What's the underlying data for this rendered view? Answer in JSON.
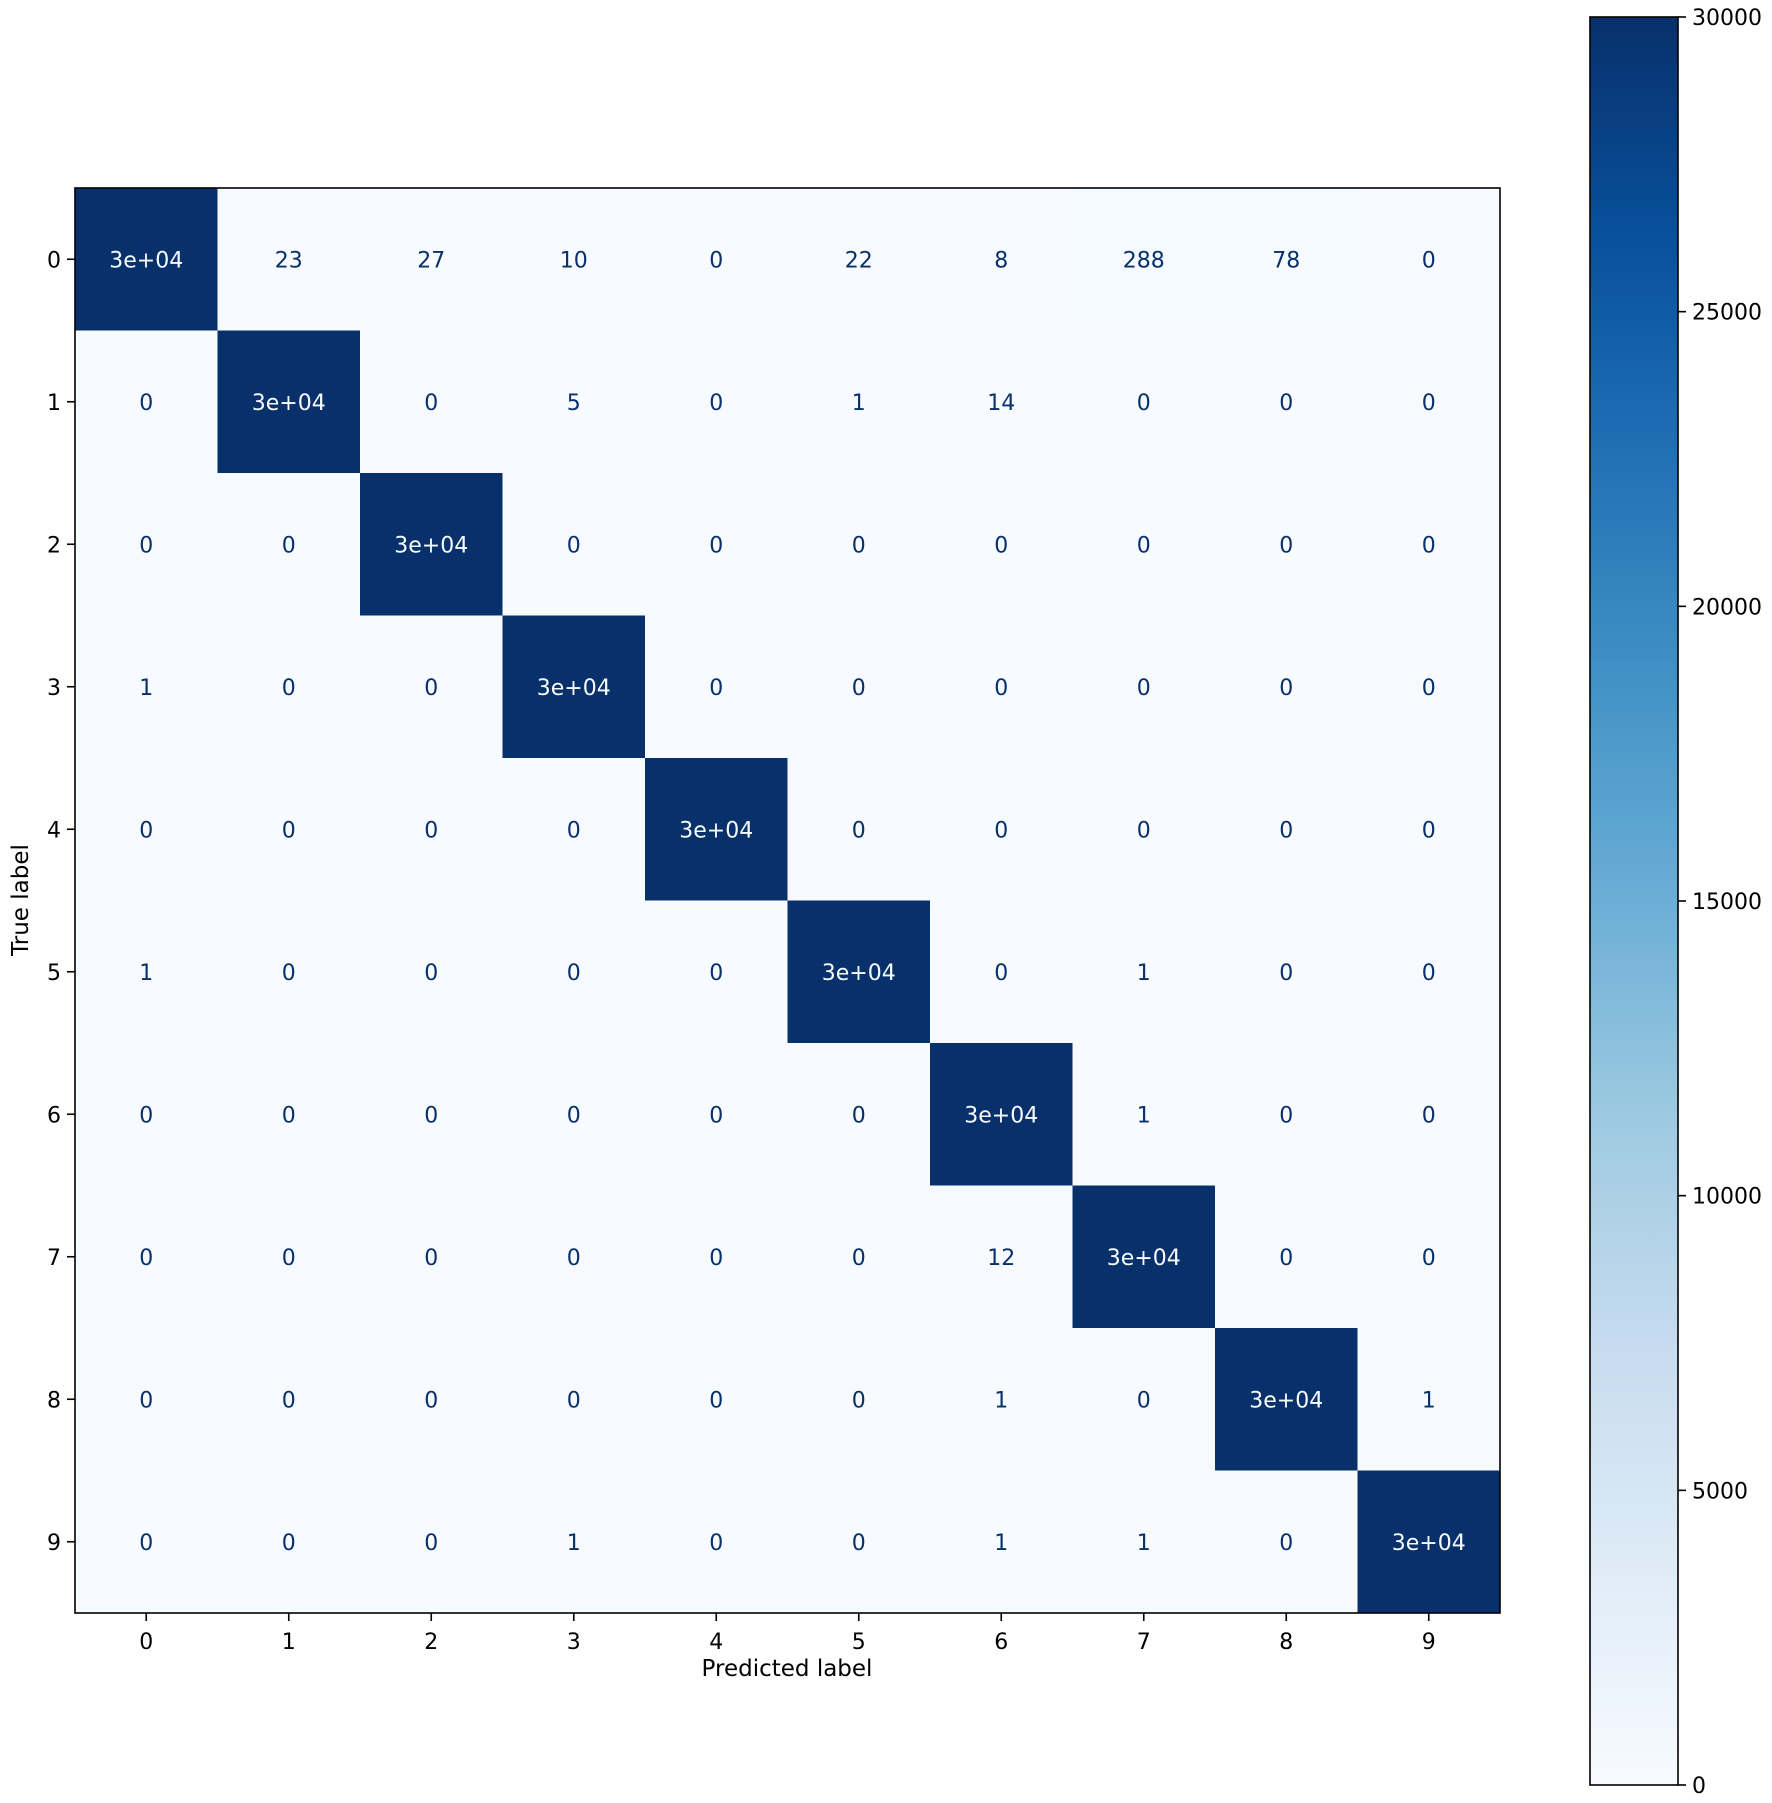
{
  "chart_data": {
    "type": "heatmap",
    "title": "",
    "xlabel": "Predicted label",
    "ylabel": "True label",
    "x_tick_labels": [
      "0",
      "1",
      "2",
      "3",
      "4",
      "5",
      "6",
      "7",
      "8",
      "9"
    ],
    "y_tick_labels": [
      "0",
      "1",
      "2",
      "3",
      "4",
      "5",
      "6",
      "7",
      "8",
      "9"
    ],
    "values": [
      [
        30000,
        23,
        27,
        10,
        0,
        22,
        8,
        288,
        78,
        0
      ],
      [
        0,
        30000,
        0,
        5,
        0,
        1,
        14,
        0,
        0,
        0
      ],
      [
        0,
        0,
        30000,
        0,
        0,
        0,
        0,
        0,
        0,
        0
      ],
      [
        1,
        0,
        0,
        30000,
        0,
        0,
        0,
        0,
        0,
        0
      ],
      [
        0,
        0,
        0,
        0,
        30000,
        0,
        0,
        0,
        0,
        0
      ],
      [
        1,
        0,
        0,
        0,
        0,
        30000,
        0,
        1,
        0,
        0
      ],
      [
        0,
        0,
        0,
        0,
        0,
        0,
        30000,
        1,
        0,
        0
      ],
      [
        0,
        0,
        0,
        0,
        0,
        0,
        12,
        30000,
        0,
        0
      ],
      [
        0,
        0,
        0,
        0,
        0,
        0,
        1,
        0,
        30000,
        1
      ],
      [
        0,
        0,
        0,
        1,
        0,
        0,
        1,
        1,
        0,
        30000
      ]
    ],
    "cell_labels": [
      [
        "3e+04",
        "23",
        "27",
        "10",
        "0",
        "22",
        "8",
        "288",
        "78",
        "0"
      ],
      [
        "0",
        "3e+04",
        "0",
        "5",
        "0",
        "1",
        "14",
        "0",
        "0",
        "0"
      ],
      [
        "0",
        "0",
        "3e+04",
        "0",
        "0",
        "0",
        "0",
        "0",
        "0",
        "0"
      ],
      [
        "1",
        "0",
        "0",
        "3e+04",
        "0",
        "0",
        "0",
        "0",
        "0",
        "0"
      ],
      [
        "0",
        "0",
        "0",
        "0",
        "3e+04",
        "0",
        "0",
        "0",
        "0",
        "0"
      ],
      [
        "1",
        "0",
        "0",
        "0",
        "0",
        "3e+04",
        "0",
        "1",
        "0",
        "0"
      ],
      [
        "0",
        "0",
        "0",
        "0",
        "0",
        "0",
        "3e+04",
        "1",
        "0",
        "0"
      ],
      [
        "0",
        "0",
        "0",
        "0",
        "0",
        "0",
        "12",
        "3e+04",
        "0",
        "0"
      ],
      [
        "0",
        "0",
        "0",
        "0",
        "0",
        "0",
        "1",
        "0",
        "3e+04",
        "1"
      ],
      [
        "0",
        "0",
        "0",
        "1",
        "0",
        "0",
        "1",
        "1",
        "0",
        "3e+04"
      ]
    ],
    "colorbar": {
      "colormap": "Blues",
      "range": [
        0,
        30000
      ],
      "ticks": [
        0,
        5000,
        10000,
        15000,
        20000,
        25000,
        30000
      ],
      "tick_labels": [
        "0",
        "5000",
        "10000",
        "15000",
        "20000",
        "25000",
        "30000"
      ]
    },
    "grid": false,
    "colors": {
      "low": "#f7fbff",
      "high": "#08306b",
      "text_dark": "#08306b",
      "text_light": "#f7fbff"
    }
  }
}
